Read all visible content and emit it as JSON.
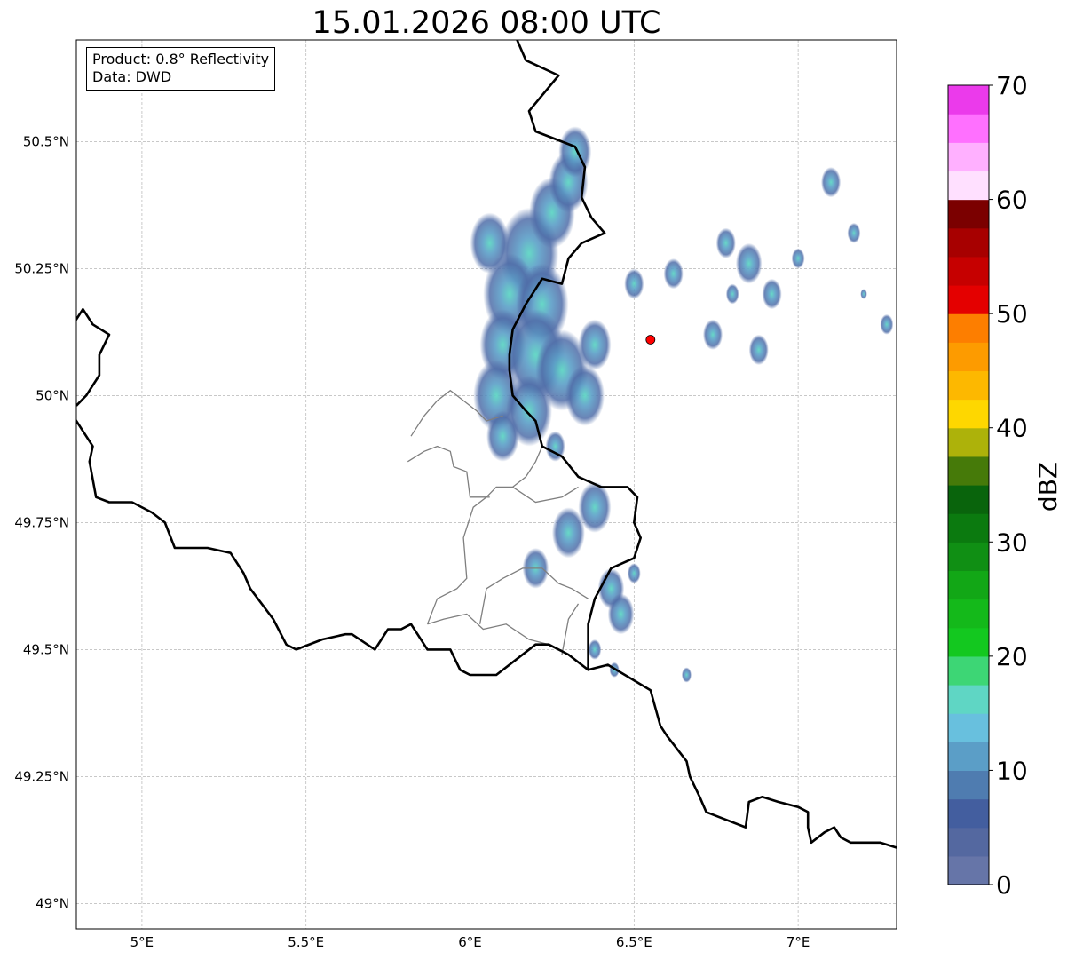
{
  "title": "15.01.2026 08:00 UTC",
  "info": {
    "product": "Product: 0.8° Reflectivity",
    "data": "Data: DWD"
  },
  "map": {
    "lon_range": [
      4.8,
      7.3
    ],
    "lat_range": [
      48.95,
      50.7
    ],
    "x_ticks": [
      {
        "value": 5.0,
        "label": "5°E"
      },
      {
        "value": 5.5,
        "label": "5.5°E"
      },
      {
        "value": 6.0,
        "label": "6°E"
      },
      {
        "value": 6.5,
        "label": "6.5°E"
      },
      {
        "value": 7.0,
        "label": "7°E"
      }
    ],
    "y_ticks": [
      {
        "value": 50.5,
        "label": "50.5°N"
      },
      {
        "value": 50.25,
        "label": "50.25°N"
      },
      {
        "value": 50.0,
        "label": "50°N"
      },
      {
        "value": 49.75,
        "label": "49.75°N"
      },
      {
        "value": 49.5,
        "label": "49.5°N"
      },
      {
        "value": 49.25,
        "label": "49.25°N"
      },
      {
        "value": 49.0,
        "label": "49°N"
      }
    ],
    "gridlines": true,
    "radar_site": {
      "lon": 6.55,
      "lat": 50.11,
      "color": "#ff0000"
    },
    "country_borders": [
      [
        [
          6.13,
          50.72
        ],
        [
          6.17,
          50.66
        ],
        [
          6.27,
          50.63
        ],
        [
          6.18,
          50.56
        ],
        [
          6.2,
          50.52
        ],
        [
          6.32,
          50.49
        ],
        [
          6.35,
          50.45
        ],
        [
          6.34,
          50.39
        ],
        [
          6.37,
          50.35
        ],
        [
          6.41,
          50.32
        ],
        [
          6.34,
          50.3
        ],
        [
          6.3,
          50.27
        ],
        [
          6.28,
          50.22
        ],
        [
          6.22,
          50.23
        ],
        [
          6.17,
          50.18
        ],
        [
          6.13,
          50.13
        ],
        [
          6.12,
          50.08
        ],
        [
          6.12,
          50.05
        ],
        [
          6.13,
          50.0
        ],
        [
          6.17,
          49.97
        ],
        [
          6.2,
          49.95
        ],
        [
          6.22,
          49.9
        ],
        [
          6.28,
          49.88
        ],
        [
          6.33,
          49.84
        ],
        [
          6.4,
          49.82
        ],
        [
          6.48,
          49.82
        ],
        [
          6.51,
          49.8
        ],
        [
          6.5,
          49.75
        ],
        [
          6.52,
          49.72
        ],
        [
          6.5,
          49.68
        ],
        [
          6.43,
          49.66
        ],
        [
          6.38,
          49.6
        ],
        [
          6.36,
          49.55
        ],
        [
          6.36,
          49.46
        ],
        [
          6.3,
          49.49
        ],
        [
          6.24,
          49.51
        ],
        [
          6.2,
          49.51
        ],
        [
          6.14,
          49.48
        ],
        [
          6.08,
          49.45
        ],
        [
          6.0,
          49.45
        ],
        [
          5.97,
          49.46
        ],
        [
          5.94,
          49.5
        ],
        [
          5.87,
          49.5
        ],
        [
          5.84,
          49.53
        ],
        [
          5.82,
          49.55
        ],
        [
          5.79,
          49.54
        ],
        [
          5.75,
          49.54
        ],
        [
          5.71,
          49.5
        ],
        [
          5.64,
          49.53
        ],
        [
          5.62,
          49.53
        ],
        [
          5.55,
          49.52
        ],
        [
          5.47,
          49.5
        ],
        [
          5.44,
          49.51
        ],
        [
          5.4,
          49.56
        ],
        [
          5.33,
          49.62
        ],
        [
          5.31,
          49.65
        ],
        [
          5.27,
          49.69
        ],
        [
          5.2,
          49.7
        ],
        [
          5.1,
          49.7
        ],
        [
          5.07,
          49.75
        ],
        [
          5.03,
          49.77
        ],
        [
          4.97,
          49.79
        ],
        [
          4.9,
          49.79
        ],
        [
          4.86,
          49.8
        ],
        [
          4.84,
          49.87
        ],
        [
          4.85,
          49.9
        ],
        [
          4.79,
          49.96
        ]
      ],
      [
        [
          4.79,
          50.14
        ],
        [
          4.82,
          50.17
        ],
        [
          4.85,
          50.14
        ],
        [
          4.9,
          50.12
        ],
        [
          4.87,
          50.08
        ],
        [
          4.87,
          50.04
        ],
        [
          4.83,
          50.0
        ],
        [
          4.8,
          49.98
        ]
      ],
      [
        [
          6.36,
          49.46
        ],
        [
          6.42,
          49.47
        ],
        [
          6.55,
          49.42
        ],
        [
          6.58,
          49.35
        ],
        [
          6.6,
          49.33
        ],
        [
          6.66,
          49.28
        ],
        [
          6.67,
          49.25
        ],
        [
          6.7,
          49.21
        ],
        [
          6.72,
          49.18
        ],
        [
          6.76,
          49.17
        ],
        [
          6.84,
          49.15
        ],
        [
          6.85,
          49.2
        ],
        [
          6.89,
          49.21
        ],
        [
          6.94,
          49.2
        ],
        [
          7.0,
          49.19
        ],
        [
          7.03,
          49.18
        ],
        [
          7.03,
          49.15
        ],
        [
          7.04,
          49.12
        ],
        [
          7.08,
          49.14
        ],
        [
          7.11,
          49.15
        ],
        [
          7.13,
          49.13
        ],
        [
          7.16,
          49.12
        ],
        [
          7.2,
          49.12
        ],
        [
          7.25,
          49.12
        ],
        [
          7.3,
          49.11
        ]
      ]
    ],
    "admin_borders": [
      [
        [
          6.24,
          49.51
        ],
        [
          6.18,
          49.52
        ],
        [
          6.11,
          49.55
        ],
        [
          6.04,
          49.54
        ],
        [
          5.99,
          49.57
        ],
        [
          5.92,
          49.56
        ],
        [
          5.87,
          49.55
        ]
      ],
      [
        [
          5.87,
          49.55
        ],
        [
          5.9,
          49.6
        ],
        [
          5.96,
          49.62
        ],
        [
          5.99,
          49.64
        ],
        [
          5.98,
          49.72
        ],
        [
          6.01,
          49.78
        ],
        [
          6.05,
          49.8
        ],
        [
          6.08,
          49.82
        ],
        [
          6.13,
          49.82
        ],
        [
          6.17,
          49.84
        ],
        [
          6.2,
          49.87
        ],
        [
          6.22,
          49.9
        ]
      ],
      [
        [
          5.81,
          49.87
        ],
        [
          5.86,
          49.89
        ],
        [
          5.9,
          49.9
        ],
        [
          5.94,
          49.89
        ],
        [
          5.95,
          49.86
        ],
        [
          5.99,
          49.85
        ],
        [
          6.0,
          49.8
        ],
        [
          6.06,
          49.8
        ]
      ],
      [
        [
          5.82,
          49.92
        ],
        [
          5.86,
          49.96
        ],
        [
          5.9,
          49.99
        ],
        [
          5.94,
          50.01
        ],
        [
          5.98,
          49.99
        ],
        [
          6.02,
          49.97
        ],
        [
          6.05,
          49.95
        ],
        [
          6.1,
          49.96
        ]
      ],
      [
        [
          6.13,
          49.82
        ],
        [
          6.2,
          49.79
        ],
        [
          6.28,
          49.8
        ],
        [
          6.33,
          49.82
        ]
      ],
      [
        [
          6.03,
          49.55
        ],
        [
          6.05,
          49.62
        ],
        [
          6.1,
          49.64
        ],
        [
          6.16,
          49.66
        ],
        [
          6.22,
          49.66
        ],
        [
          6.27,
          49.63
        ],
        [
          6.31,
          49.62
        ],
        [
          6.36,
          49.6
        ]
      ],
      [
        [
          6.28,
          49.49
        ],
        [
          6.3,
          49.56
        ],
        [
          6.33,
          49.59
        ]
      ]
    ],
    "radar_cells": [
      {
        "lon": 6.06,
        "lat": 50.3,
        "r": 0.06
      },
      {
        "lon": 6.18,
        "lat": 50.28,
        "r": 0.09
      },
      {
        "lon": 6.25,
        "lat": 50.36,
        "r": 0.07
      },
      {
        "lon": 6.3,
        "lat": 50.42,
        "r": 0.06
      },
      {
        "lon": 6.32,
        "lat": 50.48,
        "r": 0.05
      },
      {
        "lon": 6.12,
        "lat": 50.2,
        "r": 0.08
      },
      {
        "lon": 6.22,
        "lat": 50.18,
        "r": 0.08
      },
      {
        "lon": 6.1,
        "lat": 50.1,
        "r": 0.07
      },
      {
        "lon": 6.2,
        "lat": 50.08,
        "r": 0.09
      },
      {
        "lon": 6.28,
        "lat": 50.05,
        "r": 0.08
      },
      {
        "lon": 6.08,
        "lat": 50.0,
        "r": 0.07
      },
      {
        "lon": 6.18,
        "lat": 49.97,
        "r": 0.07
      },
      {
        "lon": 6.35,
        "lat": 50.0,
        "r": 0.06
      },
      {
        "lon": 6.38,
        "lat": 50.1,
        "r": 0.05
      },
      {
        "lon": 6.1,
        "lat": 49.92,
        "r": 0.05
      },
      {
        "lon": 6.26,
        "lat": 49.9,
        "r": 0.03
      },
      {
        "lon": 6.38,
        "lat": 49.78,
        "r": 0.05
      },
      {
        "lon": 6.3,
        "lat": 49.73,
        "r": 0.05
      },
      {
        "lon": 6.2,
        "lat": 49.66,
        "r": 0.04
      },
      {
        "lon": 6.43,
        "lat": 49.62,
        "r": 0.04
      },
      {
        "lon": 6.46,
        "lat": 49.57,
        "r": 0.04
      },
      {
        "lon": 6.5,
        "lat": 49.65,
        "r": 0.02
      },
      {
        "lon": 6.38,
        "lat": 49.5,
        "r": 0.02
      },
      {
        "lon": 6.5,
        "lat": 50.22,
        "r": 0.03
      },
      {
        "lon": 6.62,
        "lat": 50.24,
        "r": 0.03
      },
      {
        "lon": 6.78,
        "lat": 50.3,
        "r": 0.03
      },
      {
        "lon": 6.85,
        "lat": 50.26,
        "r": 0.04
      },
      {
        "lon": 6.92,
        "lat": 50.2,
        "r": 0.03
      },
      {
        "lon": 6.8,
        "lat": 50.2,
        "r": 0.02
      },
      {
        "lon": 6.74,
        "lat": 50.12,
        "r": 0.03
      },
      {
        "lon": 6.88,
        "lat": 50.09,
        "r": 0.03
      },
      {
        "lon": 7.1,
        "lat": 50.42,
        "r": 0.03
      },
      {
        "lon": 7.17,
        "lat": 50.32,
        "r": 0.02
      },
      {
        "lon": 7.0,
        "lat": 50.27,
        "r": 0.02
      },
      {
        "lon": 7.27,
        "lat": 50.14,
        "r": 0.02
      },
      {
        "lon": 7.2,
        "lat": 50.2,
        "r": 0.01
      },
      {
        "lon": 6.66,
        "lat": 49.45,
        "r": 0.015
      },
      {
        "lon": 6.44,
        "lat": 49.46,
        "r": 0.015
      }
    ]
  },
  "colorbar": {
    "label": "dBZ",
    "min": 0,
    "max": 70,
    "tick_labels": [
      "0",
      "10",
      "20",
      "30",
      "40",
      "50",
      "60",
      "70"
    ],
    "colors": [
      "#6675a8",
      "#5468a0",
      "#435e9f",
      "#4f7cb0",
      "#5b9ec7",
      "#68c0de",
      "#5fd6c4",
      "#3dd675",
      "#13c81f",
      "#14b91a",
      "#12a716",
      "#108f14",
      "#0b7a0f",
      "#09640c",
      "#467a09",
      "#adb20a",
      "#fed700",
      "#fdb800",
      "#fd9b00",
      "#fd7e00",
      "#e40000",
      "#c60000",
      "#a70000",
      "#7b0000",
      "#ffe0ff",
      "#ffb0ff",
      "#ff70ff",
      "#eb3aeb"
    ]
  }
}
